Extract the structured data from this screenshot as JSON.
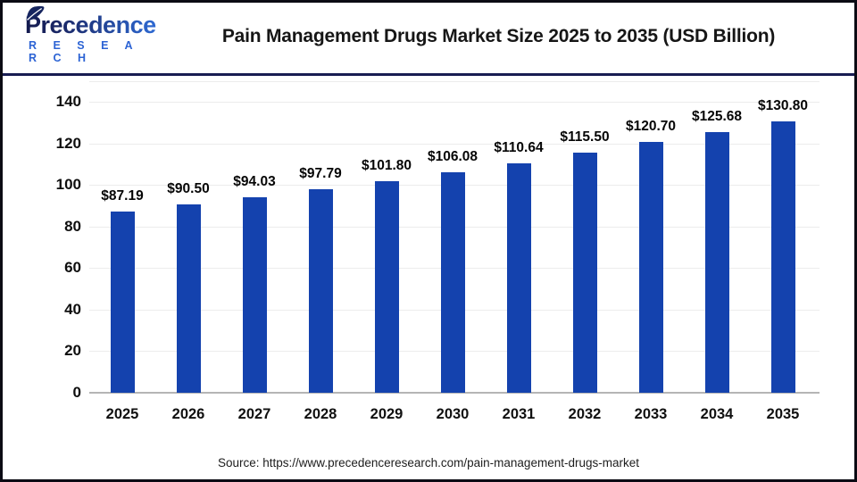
{
  "header": {
    "logo": {
      "brand": "Precedence",
      "sub": "R E S E A R C H"
    }
  },
  "chart_data": {
    "type": "bar",
    "title": "Pain Management Drugs Market Size 2025 to 2035 (USD Billion)",
    "categories": [
      "2025",
      "2026",
      "2027",
      "2028",
      "2029",
      "2030",
      "2031",
      "2032",
      "2033",
      "2034",
      "2035"
    ],
    "values": [
      87.19,
      90.5,
      94.03,
      97.79,
      101.8,
      106.08,
      110.64,
      115.5,
      120.7,
      125.68,
      130.8
    ],
    "value_prefix": "$",
    "xlabel": "",
    "ylabel": "",
    "ylim": [
      0,
      150
    ],
    "yticks": [
      0,
      20,
      40,
      60,
      80,
      100,
      120,
      140
    ],
    "grid": "horizontal",
    "legend": "none",
    "bar_color": "#1442ae"
  },
  "footer": {
    "source": "Source: https://www.precedenceresearch.com/pain-management-drugs-market"
  },
  "colors": {
    "bar": "#1442ae",
    "grid": "#ececec",
    "baseline": "#b5b5b5",
    "divider": "#181c52",
    "frame_border": "#0b0b14",
    "logo_navy": "#1b2a6b",
    "logo_blue": "#2e6bd6",
    "title_text": "#161616"
  }
}
